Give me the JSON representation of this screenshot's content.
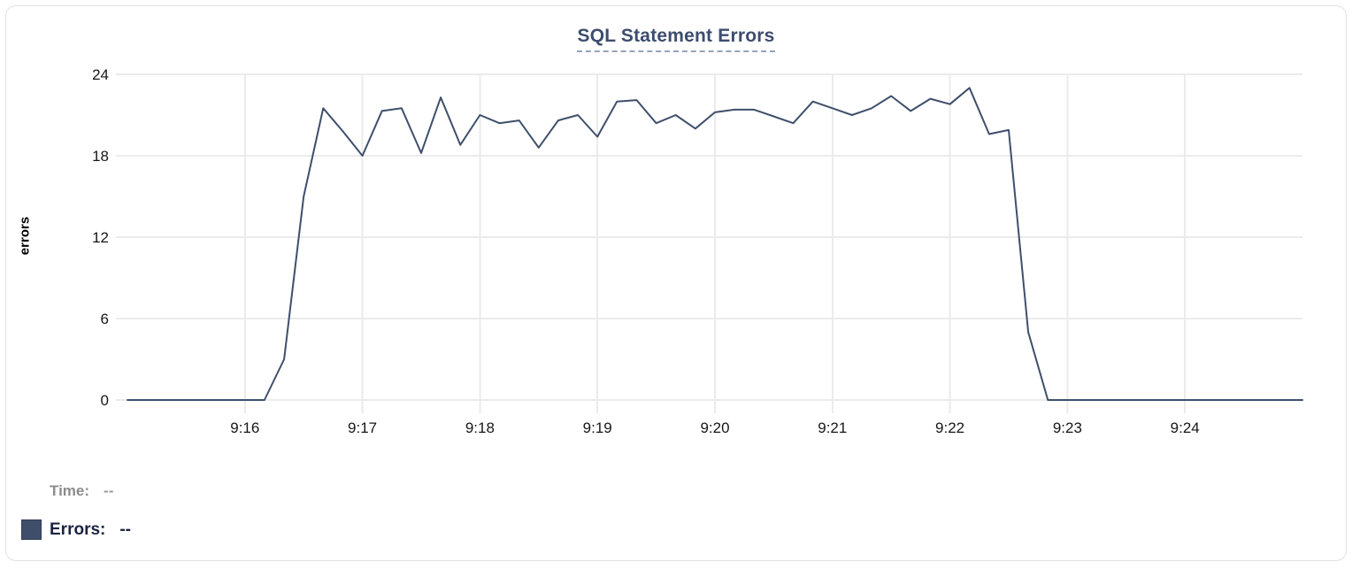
{
  "chart": {
    "title": "SQL Statement Errors",
    "y_axis_label": "errors"
  },
  "tooltip": {
    "time_label": "Time:",
    "time_value": "--",
    "errors_label": "Errors:",
    "errors_value": "--"
  },
  "colors": {
    "line": "#3f4f6b",
    "swatch": "#3f4f6b",
    "title": "#3d4d6e",
    "title_underline": "#97a3bb",
    "grid": "#ebebeb",
    "axis_text": "#171717",
    "muted_text": "#8c8c8c",
    "dark_text": "#1c2442",
    "card_border": "#e0e0e0"
  },
  "chart_data": {
    "type": "line",
    "title": "SQL Statement Errors",
    "xlabel": "",
    "ylabel": "errors",
    "ylim": [
      0,
      24
    ],
    "y_ticks": [
      0,
      6,
      12,
      18,
      24
    ],
    "x_ticks": [
      "9:16",
      "9:17",
      "9:18",
      "9:19",
      "9:20",
      "9:21",
      "9:22",
      "9:23",
      "9:24"
    ],
    "x_range": [
      "9:15:00",
      "9:25:00"
    ],
    "x_interval_seconds": 10,
    "grid": true,
    "legend_position": "bottom-left",
    "series": [
      {
        "name": "Errors",
        "color": "#3f4f6b",
        "times": [
          "9:15:00",
          "9:15:10",
          "9:15:20",
          "9:15:30",
          "9:15:40",
          "9:15:50",
          "9:16:00",
          "9:16:10",
          "9:16:20",
          "9:16:30",
          "9:16:40",
          "9:16:50",
          "9:17:00",
          "9:17:10",
          "9:17:20",
          "9:17:30",
          "9:17:40",
          "9:17:50",
          "9:18:00",
          "9:18:10",
          "9:18:20",
          "9:18:30",
          "9:18:40",
          "9:18:50",
          "9:19:00",
          "9:19:10",
          "9:19:20",
          "9:19:30",
          "9:19:40",
          "9:19:50",
          "9:20:00",
          "9:20:10",
          "9:20:20",
          "9:20:30",
          "9:20:40",
          "9:20:50",
          "9:21:00",
          "9:21:10",
          "9:21:20",
          "9:21:30",
          "9:21:40",
          "9:21:50",
          "9:22:00",
          "9:22:10",
          "9:22:20",
          "9:22:30",
          "9:22:40",
          "9:22:50",
          "9:23:00",
          "9:23:10",
          "9:23:20",
          "9:23:30",
          "9:23:40",
          "9:23:50",
          "9:24:00",
          "9:24:10",
          "9:24:20",
          "9:24:30",
          "9:24:40",
          "9:24:50",
          "9:25:00"
        ],
        "values": [
          0,
          0,
          0,
          0,
          0,
          0,
          0,
          0,
          3,
          15,
          21.5,
          19.8,
          18,
          21.3,
          21.5,
          18.2,
          22.3,
          18.8,
          21,
          20.4,
          20.6,
          18.6,
          20.6,
          21,
          19.4,
          22,
          22.1,
          20.4,
          21,
          20,
          21.2,
          21.4,
          21.4,
          20.9,
          20.4,
          22,
          21.5,
          21,
          21.5,
          22.4,
          21.3,
          22.2,
          21.8,
          23,
          19.6,
          19.9,
          5,
          0,
          0,
          0,
          0,
          0,
          0,
          0,
          0,
          0,
          0,
          0,
          0,
          0,
          0
        ]
      }
    ]
  }
}
